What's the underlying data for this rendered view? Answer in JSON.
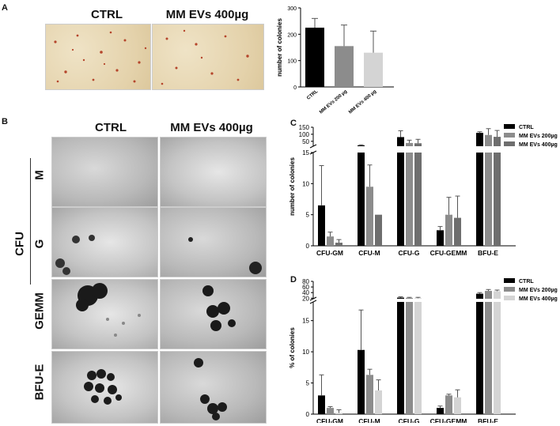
{
  "figure": {
    "panels": {
      "a": "A",
      "b": "B",
      "c": "C",
      "d": "D"
    },
    "colors": {
      "ctrl": "#000000",
      "ev200": "#8c8c8c",
      "ev400": "#d4d4d4",
      "ev400_dark": "#6e6e6e"
    },
    "panel_a_titles": {
      "ctrl": "CTRL",
      "ev400": "MM EVs 400µg"
    },
    "panel_b_titles": {
      "ctrl": "CTRL",
      "ev400": "MM EVs 400µg"
    },
    "panel_b_rows": {
      "group": "CFU",
      "m": "M",
      "g": "G",
      "gemm": "GEMM",
      "bfue": "BFU-E"
    }
  },
  "chart_data": [
    {
      "id": "A",
      "type": "bar",
      "categories": [
        "CTRL",
        "MM EVs 200 µg",
        "MM EVs 400 µg"
      ],
      "values": [
        225,
        155,
        130
      ],
      "errors": [
        35,
        80,
        82
      ],
      "ylabel": "number of colonies",
      "ylim": [
        0,
        300
      ],
      "yticks": [
        0,
        100,
        200,
        300
      ],
      "colors": [
        "#000000",
        "#8c8c8c",
        "#d4d4d4"
      ]
    },
    {
      "id": "C",
      "type": "bar",
      "categories": [
        "CFU-GM",
        "CFU-M",
        "CFU-G",
        "CFU-GEMM",
        "BFU-E"
      ],
      "series": [
        {
          "name": "CTRL",
          "values": [
            6.5,
            21,
            80,
            2.5,
            110
          ],
          "errors": [
            6.4,
            4,
            45,
            0.6,
            8
          ],
          "color": "#000000"
        },
        {
          "name": "MM EVs 200µg",
          "values": [
            1.5,
            9.5,
            38,
            5,
            95
          ],
          "errors": [
            0.7,
            3.5,
            20,
            2.8,
            45
          ],
          "color": "#8c8c8c"
        },
        {
          "name": "MM EVs 400µg",
          "values": [
            0.5,
            5,
            36,
            4.5,
            82
          ],
          "errors": [
            0.5,
            0,
            28,
            3.5,
            45
          ],
          "color": "#6e6e6e"
        }
      ],
      "ylabel": "number of colonies",
      "lower_axis": {
        "ylim": [
          0,
          15
        ],
        "yticks": [
          0,
          5,
          10,
          15
        ]
      },
      "upper_axis": {
        "ylim": [
          15,
          150
        ],
        "yticks": [
          50,
          100,
          150
        ]
      }
    },
    {
      "id": "D",
      "type": "bar",
      "categories": [
        "CFU-GM",
        "CFU-M",
        "CFU-G",
        "CFU-GEMM",
        "BFU-E"
      ],
      "series": [
        {
          "name": "CTRL",
          "values": [
            3,
            10.3,
            22,
            1,
            36
          ],
          "errors": [
            3.3,
            6.4,
            3,
            0.3,
            4
          ],
          "color": "#000000"
        },
        {
          "name": "MM EVs 200µg",
          "values": [
            1,
            6.3,
            21,
            3,
            46
          ],
          "errors": [
            0.2,
            0.9,
            2,
            0.2,
            5
          ],
          "color": "#8c8c8c"
        },
        {
          "name": "MM EVs 400µg",
          "values": [
            0.2,
            3.8,
            20,
            2.7,
            45
          ],
          "errors": [
            0.5,
            1.7,
            3,
            1.2,
            4
          ],
          "color": "#d4d4d4"
        }
      ],
      "ylabel": "% of colonies",
      "lower_axis": {
        "ylim": [
          0,
          18
        ],
        "yticks": [
          0,
          5,
          10,
          15
        ]
      },
      "upper_axis": {
        "ylim": [
          18,
          80
        ],
        "yticks": [
          20,
          40,
          60,
          80
        ]
      }
    }
  ]
}
